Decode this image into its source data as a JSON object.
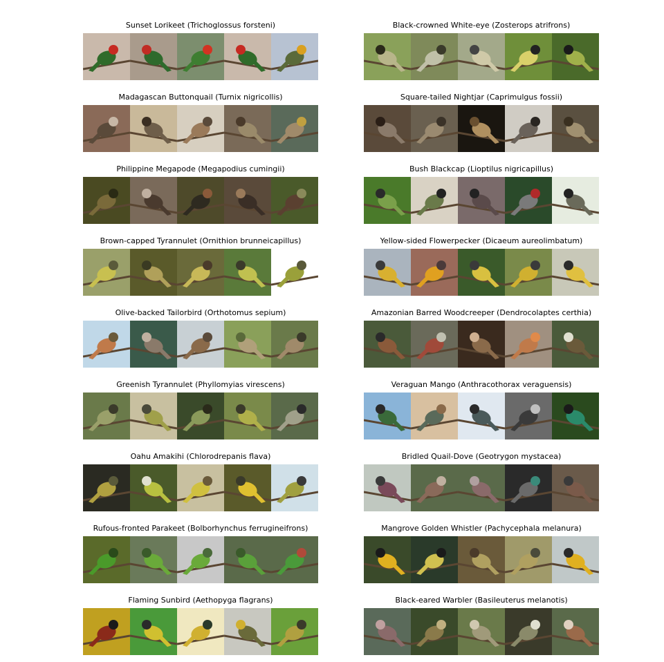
{
  "panels": [
    {
      "title": "Sunset Lorikeet (Trichoglossus forsteni)",
      "thumbs": [
        {
          "bg": "#c9b9ab",
          "fg": "#2f6b2a",
          "accent": "#c62a22"
        },
        {
          "bg": "#a99b8c",
          "fg": "#2e6a2c",
          "accent": "#c12c24"
        },
        {
          "bg": "#7c8e6e",
          "fg": "#3e7e31",
          "accent": "#d23322"
        },
        {
          "bg": "#c9b9ab",
          "fg": "#2f6b2a",
          "accent": "#c62a22"
        },
        {
          "bg": "#b7c2d2",
          "fg": "#5a6a3a",
          "accent": "#d9a020"
        }
      ]
    },
    {
      "title": "Black-crowned White-eye (Zosterops atrifrons)",
      "thumbs": [
        {
          "bg": "#8aa15a",
          "fg": "#b8b58a",
          "accent": "#2a2a1a"
        },
        {
          "bg": "#7f8a5a",
          "fg": "#c0c0a8",
          "accent": "#3a3a2a"
        },
        {
          "bg": "#a3a98a",
          "fg": "#cfc9a8",
          "accent": "#444"
        },
        {
          "bg": "#6f8f3a",
          "fg": "#d9d06a",
          "accent": "#222"
        },
        {
          "bg": "#4a6a2a",
          "fg": "#a0b04a",
          "accent": "#1a1a1a"
        }
      ]
    },
    {
      "title": "Madagascan Buttonquail (Turnix nigricollis)",
      "thumbs": [
        {
          "bg": "#8a6a58",
          "fg": "#5a4a3a",
          "accent": "#c7b7a6"
        },
        {
          "bg": "#c9b99a",
          "fg": "#6e5e4a",
          "accent": "#3a2e22"
        },
        {
          "bg": "#d7cfc0",
          "fg": "#9a7a5a",
          "accent": "#5a4a3a"
        },
        {
          "bg": "#7a6a58",
          "fg": "#9a8a6a",
          "accent": "#4a3a2a"
        },
        {
          "bg": "#5a6a5a",
          "fg": "#a08a6a",
          "accent": "#c0a040"
        }
      ]
    },
    {
      "title": "Square-tailed Nightjar (Caprimulgus fossii)",
      "thumbs": [
        {
          "bg": "#5a4a3a",
          "fg": "#8a7a6a",
          "accent": "#2a1e16"
        },
        {
          "bg": "#6a6050",
          "fg": "#9a8a70",
          "accent": "#3a3228"
        },
        {
          "bg": "#1a1610",
          "fg": "#b09060",
          "accent": "#6a5030"
        },
        {
          "bg": "#d0ccc4",
          "fg": "#6a625a",
          "accent": "#2a2622"
        },
        {
          "bg": "#5a5040",
          "fg": "#a09070",
          "accent": "#3a3020"
        }
      ]
    },
    {
      "title": "Philippine Megapode (Megapodius cumingii)",
      "thumbs": [
        {
          "bg": "#4a4a22",
          "fg": "#7a6a3a",
          "accent": "#2a2a14"
        },
        {
          "bg": "#7a6a5a",
          "fg": "#4a3a2e",
          "accent": "#c0b0a0"
        },
        {
          "bg": "#4e4a2a",
          "fg": "#2e2a20",
          "accent": "#8a5a3a"
        },
        {
          "bg": "#5a4a3a",
          "fg": "#3a2e26",
          "accent": "#9a7a5a"
        },
        {
          "bg": "#4a5a2a",
          "fg": "#5a4030",
          "accent": "#8a8a5a"
        }
      ]
    },
    {
      "title": "Bush Blackcap (Lioptilus nigricapillus)",
      "thumbs": [
        {
          "bg": "#4a7a2a",
          "fg": "#7aa04a",
          "accent": "#2a2a2a"
        },
        {
          "bg": "#d9d2c4",
          "fg": "#6a7a4a",
          "accent": "#222"
        },
        {
          "bg": "#7a6a6a",
          "fg": "#5a4a4a",
          "accent": "#222"
        },
        {
          "bg": "#2a4a2a",
          "fg": "#7a7a7a",
          "accent": "#b02a2a"
        },
        {
          "bg": "#e6ece0",
          "fg": "#6a6a5a",
          "accent": "#222"
        }
      ]
    },
    {
      "title": "Brown-capped Tyrannulet (Ornithion brunneicapillus)",
      "thumbs": [
        {
          "bg": "#9aa06a",
          "fg": "#c8c050",
          "accent": "#5a5a3a"
        },
        {
          "bg": "#5a5a2a",
          "fg": "#b0a05a",
          "accent": "#3a3a22"
        },
        {
          "bg": "#6a6a3a",
          "fg": "#c8b858",
          "accent": "#4a3a2a"
        },
        {
          "bg": "#5a7a3a",
          "fg": "#c0c050",
          "accent": "#3a3a2a"
        },
        {
          "bg": "#ffffff",
          "fg": "#9aa03a",
          "accent": "#5a5a3a"
        }
      ]
    },
    {
      "title": "Yellow-sided Flowerpecker (Dicaeum aureolimbatum)",
      "thumbs": [
        {
          "bg": "#aab4be",
          "fg": "#d8b030",
          "accent": "#3a3a3a"
        },
        {
          "bg": "#9a6a5a",
          "fg": "#e0a020",
          "accent": "#4a3a3a"
        },
        {
          "bg": "#3a5a2a",
          "fg": "#d8c040",
          "accent": "#3a3a3a"
        },
        {
          "bg": "#7a8a4a",
          "fg": "#d0b030",
          "accent": "#3a3a3a"
        },
        {
          "bg": "#c8c8b8",
          "fg": "#e0c040",
          "accent": "#2a2a2a"
        }
      ]
    },
    {
      "title": "Olive-backed Tailorbird (Orthotomus sepium)",
      "thumbs": [
        {
          "bg": "#c0d8e8",
          "fg": "#c07a4a",
          "accent": "#6a5a3a"
        },
        {
          "bg": "#3a5a4a",
          "fg": "#8a7a6a",
          "accent": "#c0b0a0"
        },
        {
          "bg": "#c8d0d4",
          "fg": "#8a6a4a",
          "accent": "#5a4a3a"
        },
        {
          "bg": "#8aa05a",
          "fg": "#b0a07a",
          "accent": "#5a6a3a"
        },
        {
          "bg": "#6a7a4a",
          "fg": "#a08a6a",
          "accent": "#3a3a2a"
        }
      ]
    },
    {
      "title": "Amazonian Barred Woodcreeper (Dendrocolaptes certhia)",
      "thumbs": [
        {
          "bg": "#4a5a3a",
          "fg": "#8a5a3a",
          "accent": "#2a2a2a"
        },
        {
          "bg": "#6a6a5a",
          "fg": "#a04a3a",
          "accent": "#c0c0b0"
        },
        {
          "bg": "#3a2a1e",
          "fg": "#8a6a4a",
          "accent": "#d0b090"
        },
        {
          "bg": "#a09080",
          "fg": "#c07a4a",
          "accent": "#e08a4a"
        },
        {
          "bg": "#4a5a3a",
          "fg": "#6a5a3a",
          "accent": "#e0e0d0"
        }
      ]
    },
    {
      "title": "Greenish Tyrannulet (Phyllomyias virescens)",
      "thumbs": [
        {
          "bg": "#6a7a4a",
          "fg": "#9aa06a",
          "accent": "#3a3a2a"
        },
        {
          "bg": "#c8c0a0",
          "fg": "#a0a04a",
          "accent": "#4a4a3a"
        },
        {
          "bg": "#3a4a2a",
          "fg": "#8a9a5a",
          "accent": "#2a2a1a"
        },
        {
          "bg": "#7a8a4a",
          "fg": "#b0b04a",
          "accent": "#3a3a2a"
        },
        {
          "bg": "#5a6a4a",
          "fg": "#a0a08a",
          "accent": "#2a2a2a"
        }
      ]
    },
    {
      "title": "Veraguan Mango (Anthracothorax veraguensis)",
      "thumbs": [
        {
          "bg": "#8ab4d8",
          "fg": "#3a6a3a",
          "accent": "#2a2a2a"
        },
        {
          "bg": "#d8c0a0",
          "fg": "#5a6a5a",
          "accent": "#8a6a4a"
        },
        {
          "bg": "#e0e8f0",
          "fg": "#4a5a5a",
          "accent": "#2a2a2a"
        },
        {
          "bg": "#6a6a6a",
          "fg": "#3a3a3a",
          "accent": "#c0c0c0"
        },
        {
          "bg": "#2a4a1e",
          "fg": "#2a8a6a",
          "accent": "#1a1a1a"
        }
      ]
    },
    {
      "title": "Oahu Amakihi (Chlorodrepanis flava)",
      "thumbs": [
        {
          "bg": "#2a2a22",
          "fg": "#b0a040",
          "accent": "#5a5a3a"
        },
        {
          "bg": "#4a5a2a",
          "fg": "#b8c040",
          "accent": "#e0e0d0"
        },
        {
          "bg": "#c8c0a0",
          "fg": "#d0c040",
          "accent": "#6a5a3a"
        },
        {
          "bg": "#5a5a2a",
          "fg": "#e0c030",
          "accent": "#3a3a2a"
        },
        {
          "bg": "#d0e0e8",
          "fg": "#a0a040",
          "accent": "#3a3a3a"
        }
      ]
    },
    {
      "title": "Bridled Quail-Dove (Geotrygon mystacea)",
      "thumbs": [
        {
          "bg": "#c0c8c0",
          "fg": "#7a4a5a",
          "accent": "#3a3a3a"
        },
        {
          "bg": "#5a6a4a",
          "fg": "#8a6a5a",
          "accent": "#c0b0a0"
        },
        {
          "bg": "#5a6a4a",
          "fg": "#8a6a6a",
          "accent": "#b0a0a0"
        },
        {
          "bg": "#2a2a2a",
          "fg": "#6a6a6a",
          "accent": "#3a8a7a"
        },
        {
          "bg": "#6a5a4a",
          "fg": "#7a5a4a",
          "accent": "#3a3a3a"
        }
      ]
    },
    {
      "title": "Rufous-fronted Parakeet (Bolborhynchus ferrugineifrons)",
      "thumbs": [
        {
          "bg": "#5a6a2a",
          "fg": "#4a9a2a",
          "accent": "#2a4a1a"
        },
        {
          "bg": "#6a7a5a",
          "fg": "#6aaa3a",
          "accent": "#3a5a2a"
        },
        {
          "bg": "#c8c8c8",
          "fg": "#6aaa3a",
          "accent": "#4a6a3a"
        },
        {
          "bg": "#5a6a4a",
          "fg": "#5aa03a",
          "accent": "#3a5a2a"
        },
        {
          "bg": "#5a6a4a",
          "fg": "#4a9a3a",
          "accent": "#b04a3a"
        }
      ]
    },
    {
      "title": "Mangrove Golden Whistler (Pachycephala melanura)",
      "thumbs": [
        {
          "bg": "#3a4a2a",
          "fg": "#e0b020",
          "accent": "#1a1a1a"
        },
        {
          "bg": "#2a3a2a",
          "fg": "#d0c050",
          "accent": "#1a1a1a"
        },
        {
          "bg": "#6a5a3a",
          "fg": "#b0a060",
          "accent": "#4a3a2a"
        },
        {
          "bg": "#a09a6a",
          "fg": "#b0a060",
          "accent": "#4a4a3a"
        },
        {
          "bg": "#c0c8c8",
          "fg": "#e0b020",
          "accent": "#2a2a2a"
        }
      ]
    },
    {
      "title": "Flaming Sunbird (Aethopyga flagrans)",
      "thumbs": [
        {
          "bg": "#c0a020",
          "fg": "#8a2a1a",
          "accent": "#1a1a1a"
        },
        {
          "bg": "#4a9a3a",
          "fg": "#d0c030",
          "accent": "#2a2a2a"
        },
        {
          "bg": "#f0e8c0",
          "fg": "#d0b030",
          "accent": "#2a3a2a"
        },
        {
          "bg": "#c8c8c0",
          "fg": "#6a6a3a",
          "accent": "#d0b030"
        },
        {
          "bg": "#6aa03a",
          "fg": "#b0a040",
          "accent": "#3a3a2a"
        }
      ]
    },
    {
      "title": "Black-eared Warbler (Basileuterus melanotis)",
      "thumbs": [
        {
          "bg": "#5a6a5a",
          "fg": "#8a6a6a",
          "accent": "#c0a0a0"
        },
        {
          "bg": "#3a4a2a",
          "fg": "#8a7a4a",
          "accent": "#c0b080"
        },
        {
          "bg": "#6a7a4a",
          "fg": "#a09a7a",
          "accent": "#d0c8b0"
        },
        {
          "bg": "#3a3a2a",
          "fg": "#8a8a6a",
          "accent": "#e0e0d0"
        },
        {
          "bg": "#5a6a4a",
          "fg": "#9a6a4a",
          "accent": "#e0d0c0"
        }
      ]
    }
  ]
}
